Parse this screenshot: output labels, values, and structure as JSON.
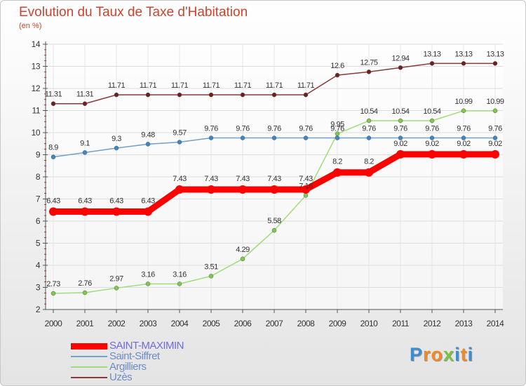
{
  "header": {
    "title": "Evolution du Taux de Taxe d'Habitation",
    "subtitle": "(en %)"
  },
  "chart_data": {
    "type": "line",
    "title": "Evolution du Taux de Taxe d'Habitation",
    "ylabel": "(en %)",
    "xlabel": "",
    "x": [
      2000,
      2001,
      2002,
      2003,
      2004,
      2005,
      2006,
      2007,
      2008,
      2009,
      2010,
      2011,
      2012,
      2013,
      2014
    ],
    "ylim": [
      2,
      14
    ],
    "yticks": [
      2,
      3,
      4,
      5,
      6,
      7,
      8,
      9,
      10,
      11,
      12,
      13,
      14
    ],
    "grid": true,
    "legend_position": "bottom-left",
    "series": [
      {
        "name": "SAINT-MAXIMIN",
        "color": "#ff0000",
        "emphasis": true,
        "values": [
          6.43,
          6.43,
          6.43,
          6.43,
          7.43,
          7.43,
          7.43,
          7.43,
          7.43,
          8.2,
          8.2,
          9.02,
          9.02,
          9.02,
          9.02
        ],
        "labels": [
          "6.43",
          "6.43",
          "6.43",
          "6.43",
          "7.43",
          "7.43",
          "7.43",
          "7.43",
          "7.43",
          "8.2",
          "8.2",
          "9.02",
          "9.02",
          "9.02",
          "9.02"
        ]
      },
      {
        "name": "Saint-Siffret",
        "color": "#6fa1c9",
        "marker": "#3d87c4",
        "values": [
          8.9,
          9.1,
          9.3,
          9.48,
          9.57,
          9.76,
          9.76,
          9.76,
          9.76,
          9.76,
          9.76,
          9.76,
          9.76,
          9.76,
          9.76
        ],
        "labels": [
          "8.9",
          "9.1",
          "9.3",
          "9.48",
          "9.57",
          "9.76",
          "9.76",
          "9.76",
          "9.76",
          "9.76",
          "9.76",
          "9.76",
          "9.76",
          "9.76",
          "9.76"
        ]
      },
      {
        "name": "Argilliers",
        "color": "#9fdc7a",
        "marker": "#7ccc4a",
        "values": [
          2.73,
          2.76,
          2.97,
          3.16,
          3.16,
          3.51,
          4.29,
          5.58,
          7.16,
          9.95,
          10.54,
          10.54,
          10.54,
          10.99,
          10.99
        ],
        "labels": [
          "2.73",
          "2.76",
          "2.97",
          "3.16",
          "3.16",
          "3.51",
          "4.29",
          "5.58",
          "7.16",
          "9.95",
          "10.54",
          "10.54",
          "10.54",
          "10.99",
          "10.99"
        ]
      },
      {
        "name": "Uzès",
        "color": "#8a3a3a",
        "marker": "#6e1f1f",
        "values": [
          11.31,
          11.31,
          11.71,
          11.71,
          11.71,
          11.71,
          11.71,
          11.71,
          11.71,
          12.6,
          12.75,
          12.94,
          13.13,
          13.13,
          13.13
        ],
        "labels": [
          "11.31",
          "11.31",
          "11.71",
          "11.71",
          "11.71",
          "11.71",
          "11.71",
          "11.71",
          "11.71",
          "12.6",
          "12.75",
          "12.94",
          "13.13",
          "13.13",
          "13.13"
        ]
      }
    ]
  },
  "logo": {
    "letters": [
      "P",
      "r",
      "o",
      "x",
      "i",
      "t",
      "i"
    ],
    "colors": [
      "#3b8fd0",
      "#f08a24",
      "#f08a24",
      "#7cc242",
      "#3b8fd0",
      "#f08a24",
      "#3b8fd0"
    ]
  }
}
